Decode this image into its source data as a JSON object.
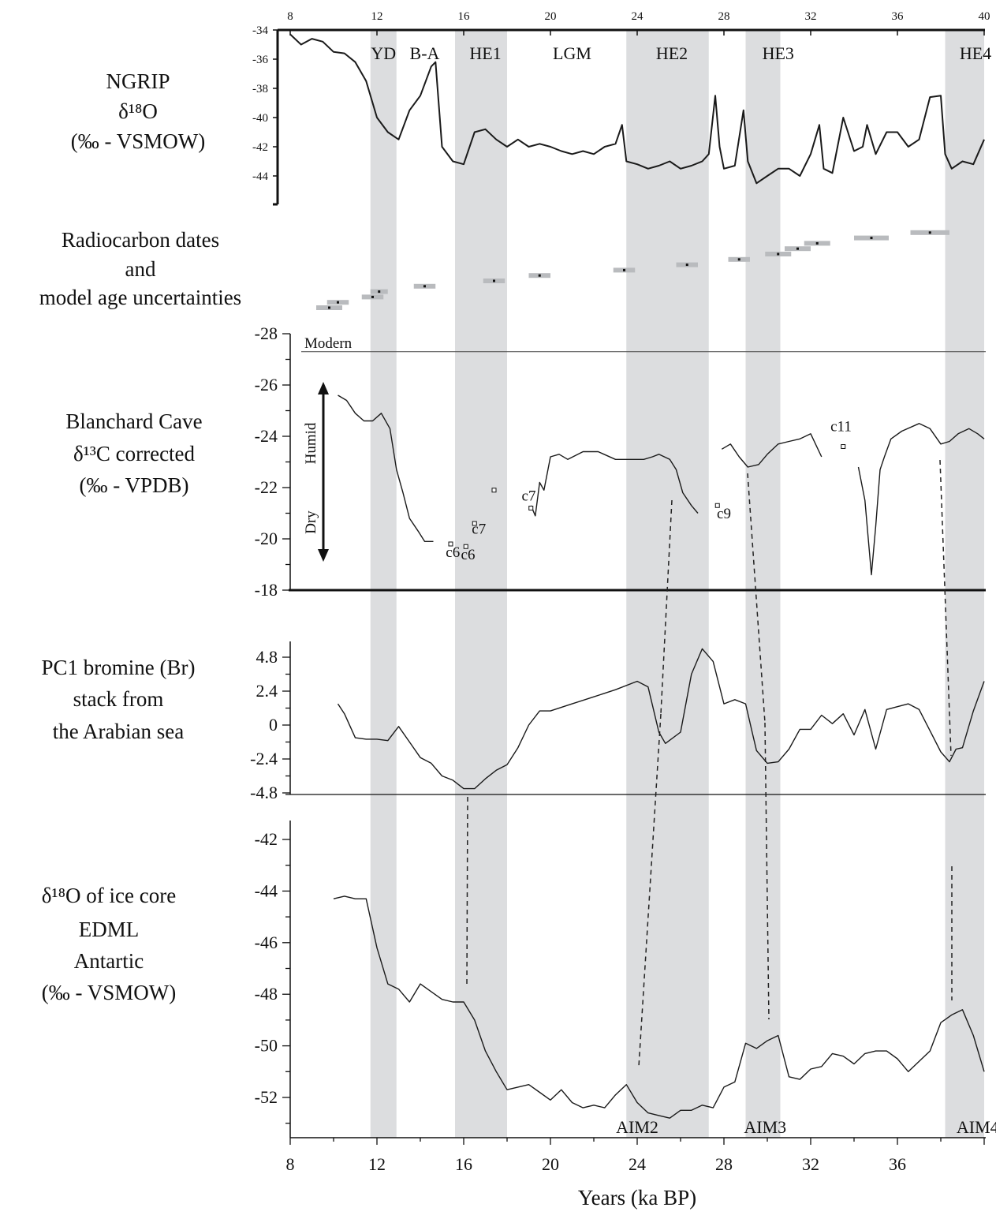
{
  "xlabel": "Years (ka BP)",
  "bottom_ticks": [
    "8",
    "12",
    "16",
    "20",
    "24",
    "28",
    "32",
    "36"
  ],
  "top_ticks": [
    "8",
    "12",
    "16",
    "20",
    "24",
    "28",
    "32",
    "36",
    "40"
  ],
  "events": [
    "YD",
    "B-A",
    "HE1",
    "LGM",
    "HE2",
    "HE3",
    "HE4"
  ],
  "aim_labels": [
    "AIM2",
    "AIM3",
    "AIM4"
  ],
  "panels": {
    "ngrip": {
      "label": [
        "NGRIP",
        "δ¹⁸O",
        "(‰ - VSMOW)"
      ],
      "ticks": [
        "-34",
        "-36",
        "-38",
        "-40",
        "-42",
        "-44"
      ]
    },
    "radiocarbon": {
      "label": [
        "Radiocarbon dates",
        "and",
        "model age uncertainties"
      ]
    },
    "blanchard": {
      "label": [
        "Blanchard Cave",
        "δ¹³C corrected",
        "(‰ - VPDB)"
      ],
      "ticks": [
        "-28",
        "-26",
        "-24",
        "-22",
        "-20",
        "-18"
      ],
      "modern": "Modern",
      "humid": "Humid",
      "dry": "Dry"
    },
    "pc1": {
      "label": [
        "PC1 bromine (Br)",
        "stack from",
        "the Arabian sea"
      ],
      "ticks": [
        "4.8",
        "2.4",
        "0",
        "-2.4",
        "-4.8"
      ]
    },
    "edml": {
      "label": [
        "δ¹⁸O of ice core",
        "EDML",
        "Antartic",
        "(‰ - VSMOW)"
      ],
      "ticks": [
        "-42",
        "-44",
        "-46",
        "-48",
        "-50",
        "-52"
      ]
    }
  },
  "sample_labels": [
    {
      "text": "c6",
      "x": 15.5,
      "y": -19.3
    },
    {
      "text": "c6",
      "x": 16.2,
      "y": -19.2
    },
    {
      "text": "c7",
      "x": 16.7,
      "y": -20.2
    },
    {
      "text": "c7",
      "x": 19.0,
      "y": -21.5
    },
    {
      "text": "c9",
      "x": 28.0,
      "y": -20.8
    },
    {
      "text": "c11",
      "x": 33.4,
      "y": -24.2
    }
  ],
  "chart_data": {
    "type": "line",
    "x_unit": "ka BP",
    "xlim": [
      8,
      40
    ],
    "shaded_intervals_ka": [
      [
        11.7,
        12.9
      ],
      [
        15.6,
        18.0
      ],
      [
        23.5,
        27.3
      ],
      [
        29.0,
        30.6
      ],
      [
        38.2,
        40.0
      ]
    ],
    "ngrip_d18O": {
      "ylim": [
        -34,
        -46
      ],
      "x": [
        8,
        8.5,
        9,
        9.5,
        10,
        10.5,
        11,
        11.5,
        12,
        12.5,
        13,
        13.5,
        14,
        14.5,
        14.7,
        15,
        15.5,
        16,
        16.5,
        17,
        17.5,
        18,
        18.5,
        19,
        19.5,
        20,
        20.5,
        21,
        21.5,
        22,
        22.5,
        23,
        23.3,
        23.5,
        24,
        24.5,
        25,
        25.5,
        26,
        26.5,
        27,
        27.3,
        27.6,
        27.8,
        28,
        28.5,
        28.9,
        29.1,
        29.5,
        30,
        30.5,
        31,
        31.5,
        32,
        32.4,
        32.6,
        33,
        33.5,
        34,
        34.4,
        34.6,
        35,
        35.5,
        36,
        36.5,
        37,
        37.5,
        38,
        38.2,
        38.5,
        39,
        39.5,
        40
      ],
      "y": [
        -34.3,
        -35,
        -34.6,
        -34.8,
        -35.5,
        -35.6,
        -36.2,
        -37.5,
        -40,
        -41,
        -41.5,
        -39.5,
        -38.5,
        -36.5,
        -36.2,
        -42,
        -43,
        -43.2,
        -41,
        -40.8,
        -41.5,
        -42,
        -41.5,
        -42,
        -41.8,
        -42,
        -42.3,
        -42.5,
        -42.3,
        -42.5,
        -42,
        -41.8,
        -40.5,
        -43,
        -43.2,
        -43.5,
        -43.3,
        -43,
        -43.5,
        -43.3,
        -43,
        -42.5,
        -38.5,
        -42,
        -43.5,
        -43.3,
        -39.5,
        -43,
        -44.5,
        -44,
        -43.5,
        -43.5,
        -44,
        -42.5,
        -40.5,
        -43.5,
        -43.8,
        -40,
        -42.3,
        -42,
        -40.5,
        -42.5,
        -41,
        -41,
        -42,
        -41.5,
        -38.6,
        -38.5,
        -42.5,
        -43.5,
        -43,
        -43.2,
        -41.5
      ]
    },
    "radiocarbon_dates": [
      {
        "age": 9.8,
        "err": 0.6,
        "row": 0
      },
      {
        "age": 10.2,
        "err": 0.5,
        "row": 1
      },
      {
        "age": 11.8,
        "err": 0.5,
        "row": 2
      },
      {
        "age": 12.1,
        "err": 0.4,
        "row": 3
      },
      {
        "age": 14.2,
        "err": 0.5,
        "row": 4
      },
      {
        "age": 17.4,
        "err": 0.5,
        "row": 5
      },
      {
        "age": 19.5,
        "err": 0.5,
        "row": 6
      },
      {
        "age": 23.4,
        "err": 0.5,
        "row": 7
      },
      {
        "age": 26.3,
        "err": 0.5,
        "row": 8
      },
      {
        "age": 28.7,
        "err": 0.5,
        "row": 9
      },
      {
        "age": 30.5,
        "err": 0.6,
        "row": 10
      },
      {
        "age": 31.4,
        "err": 0.6,
        "row": 11
      },
      {
        "age": 32.3,
        "err": 0.6,
        "row": 12
      },
      {
        "age": 34.8,
        "err": 0.8,
        "row": 13
      },
      {
        "age": 37.5,
        "err": 0.9,
        "row": 14
      }
    ],
    "blanchard_d13C": {
      "ylim": [
        -28,
        -18
      ],
      "modern": -27.3,
      "segments": [
        {
          "x": [
            10.2,
            10.6,
            11,
            11.4,
            11.8,
            12.2,
            12.6,
            12.9,
            13.2,
            13.5,
            13.9,
            14.2,
            14.6
          ],
          "y": [
            -25.6,
            -25.4,
            -24.9,
            -24.6,
            -24.6,
            -24.9,
            -24.3,
            -22.7,
            -21.8,
            -20.8,
            -20.3,
            -19.9,
            -19.9
          ]
        },
        {
          "x": [
            19.3,
            19.5,
            19.7,
            20,
            20.4,
            20.8,
            21.5,
            22.2,
            23,
            23.7,
            24.3,
            24.7,
            25,
            25.5,
            25.8,
            26.1,
            26.5,
            26.8
          ],
          "y": [
            -20.9,
            -22.2,
            -21.9,
            -23.2,
            -23.3,
            -23.1,
            -23.4,
            -23.4,
            -23.1,
            -23.1,
            -23.1,
            -23.2,
            -23.3,
            -23.1,
            -22.7,
            -21.8,
            -21.3,
            -21
          ],
          "pre": [
            19.1,
            -21.3
          ]
        },
        {
          "x": [
            27.9,
            28.3,
            28.7,
            29.1,
            29.6,
            30,
            30.5,
            31,
            31.5,
            32,
            32.5
          ],
          "y": [
            -23.5,
            -23.7,
            -23.2,
            -22.8,
            -22.9,
            -23.3,
            -23.7,
            -23.8,
            -23.9,
            -24.1,
            -23.2
          ]
        },
        {
          "x": [
            34.2,
            34.5,
            34.8,
            35,
            35.2,
            35.4,
            35.7,
            36.2,
            37,
            37.5,
            38,
            38.4,
            38.8,
            39.3,
            39.7,
            40
          ],
          "y": [
            -22.8,
            -21.5,
            -18.6,
            -20.5,
            -22.7,
            -23.2,
            -23.9,
            -24.2,
            -24.5,
            -24.3,
            -23.7,
            -23.8,
            -24.1,
            -24.3,
            -24.1,
            -23.9
          ]
        }
      ],
      "samples": [
        {
          "x": 15.4,
          "y": -19.8
        },
        {
          "x": 16.1,
          "y": -19.7
        },
        {
          "x": 16.5,
          "y": -20.6
        },
        {
          "x": 17.4,
          "y": -21.9
        },
        {
          "x": 19.1,
          "y": -21.2
        },
        {
          "x": 27.7,
          "y": -21.3
        },
        {
          "x": 33.5,
          "y": -23.6
        }
      ]
    },
    "pc1_bromine": {
      "ylim": [
        -4.8,
        4.8
      ],
      "x": [
        10.2,
        10.5,
        11,
        11.5,
        12,
        12.5,
        13,
        13.5,
        14,
        14.5,
        15,
        15.5,
        16,
        16.5,
        17,
        17.5,
        18,
        18.5,
        19,
        19.5,
        20,
        21,
        22,
        23,
        24,
        24.5,
        25,
        25.3,
        26,
        26.5,
        27,
        27.5,
        28,
        28.5,
        29,
        29.3,
        29.5,
        30,
        30.5,
        31,
        31.5,
        32,
        32.5,
        33,
        33.5,
        34,
        34.5,
        35,
        35.5,
        36,
        36.5,
        37,
        37.5,
        38,
        38.4,
        38.7,
        39,
        39.5,
        40
      ],
      "y": [
        1.5,
        0.8,
        -0.9,
        -1,
        -1,
        -1.1,
        -0.1,
        -1.2,
        -2.3,
        -2.7,
        -3.6,
        -3.9,
        -4.5,
        -4.5,
        -3.8,
        -3.2,
        -2.8,
        -1.6,
        0,
        1,
        1,
        1.5,
        2,
        2.5,
        3.1,
        2.7,
        -0.5,
        -1.3,
        -0.5,
        3.6,
        5.4,
        4.5,
        1.5,
        1.8,
        1.5,
        -0.5,
        -1.8,
        -2.7,
        -2.6,
        -1.7,
        -0.3,
        -0.3,
        0.7,
        0.1,
        0.8,
        -0.7,
        1.1,
        -1.7,
        1.1,
        1.3,
        1.5,
        1.1,
        -0.4,
        -1.9,
        -2.6,
        -1.7,
        -1.6,
        1,
        3.1
      ]
    },
    "edml_d18O": {
      "ylim": [
        -54,
        -41.5
      ],
      "x": [
        10,
        10.5,
        11,
        11.5,
        12,
        12.5,
        13,
        13.5,
        14,
        14.5,
        15,
        15.5,
        16,
        16.5,
        17,
        17.5,
        18,
        18.5,
        19,
        19.5,
        20,
        20.5,
        21,
        21.5,
        22,
        22.5,
        23,
        23.5,
        24,
        24.5,
        25,
        25.5,
        26,
        26.5,
        27,
        27.5,
        28,
        28.5,
        29,
        29.5,
        30,
        30.5,
        31,
        31.5,
        32,
        32.5,
        33,
        33.5,
        34,
        34.5,
        35,
        35.5,
        36,
        36.5,
        37,
        37.5,
        38,
        38.5,
        39,
        39.5,
        40
      ],
      "y": [
        -44.3,
        -44.2,
        -44.3,
        -44.3,
        -46.2,
        -47.6,
        -47.8,
        -48.3,
        -47.6,
        -47.9,
        -48.2,
        -48.3,
        -48.3,
        -49,
        -50.2,
        -51,
        -51.7,
        -51.6,
        -51.5,
        -51.8,
        -52.1,
        -51.7,
        -52.2,
        -52.4,
        -52.3,
        -52.4,
        -51.9,
        -51.5,
        -52.2,
        -52.6,
        -52.7,
        -52.8,
        -52.5,
        -52.5,
        -52.3,
        -52.4,
        -51.6,
        -51.4,
        -49.9,
        -50.1,
        -49.8,
        -49.6,
        -51.2,
        -51.3,
        -50.9,
        -50.8,
        -50.3,
        -50.4,
        -50.7,
        -50.3,
        -50.2,
        -50.2,
        -50.5,
        -51,
        -50.6,
        -50.2,
        -49.1,
        -48.8,
        -48.6,
        -49.6,
        -51
      ]
    }
  }
}
